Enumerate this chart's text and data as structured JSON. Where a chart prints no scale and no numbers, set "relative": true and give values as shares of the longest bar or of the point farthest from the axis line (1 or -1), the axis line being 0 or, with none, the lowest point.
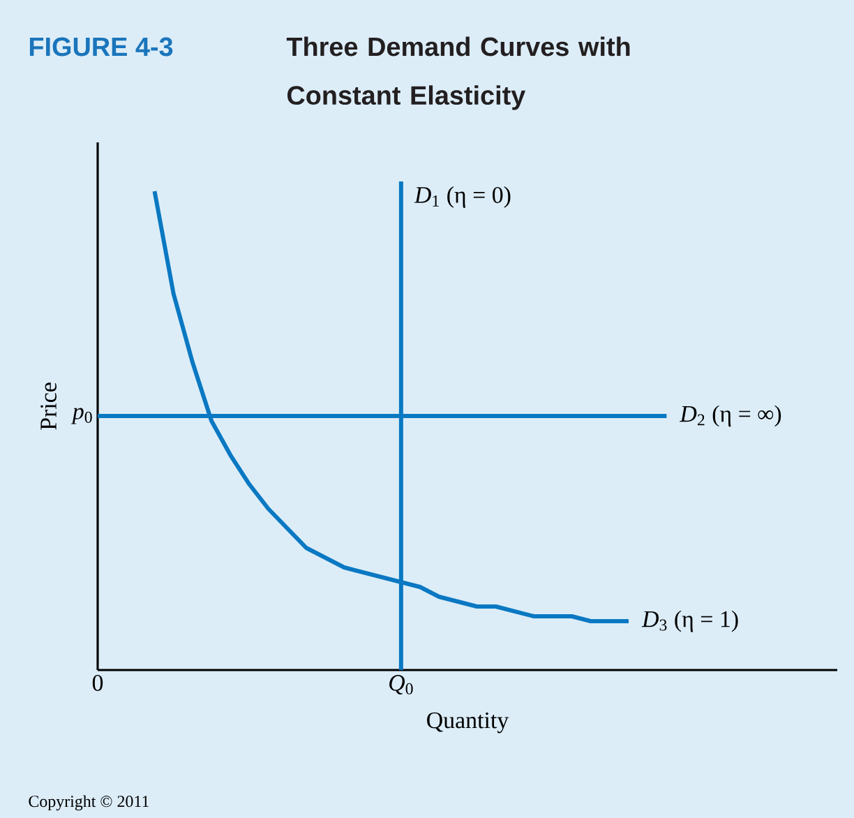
{
  "chart_data": {
    "type": "line",
    "title": "FIGURE 4-3",
    "subtitle": "Three Demand Curves with Constant Elasticity",
    "xlabel": "Quantity",
    "ylabel": "Price",
    "relative": true,
    "categories": [
      "0",
      null,
      null,
      null,
      null,
      null,
      null,
      null,
      null,
      null,
      null,
      null,
      null,
      null,
      null,
      null,
      "*Q*$_{0}$",
      null,
      null,
      null,
      null,
      null,
      null,
      null,
      null,
      null,
      null,
      null,
      null,
      null,
      null,
      null,
      null,
      null,
      null,
      null,
      null,
      null,
      null,
      null
    ],
    "series": [
      {
        "name": "*D*$_{1}$  (η = 0)",
        "type": "bar",
        "color": "#0a78c2",
        "values": [
          null,
          null,
          null,
          null,
          null,
          null,
          null,
          null,
          null,
          null,
          null,
          null,
          null,
          null,
          null,
          null,
          1,
          null,
          null,
          null,
          null,
          null,
          null,
          null,
          null,
          null,
          null,
          null,
          null,
          null,
          null,
          null,
          null,
          null,
          null,
          null,
          null,
          null,
          null,
          null
        ]
      },
      {
        "name": "*D*$_{2}$ (η = ∞)",
        "color": "#0a78c2",
        "values": [
          0.52,
          0.52,
          0.52,
          0.52,
          0.52,
          0.52,
          0.52,
          0.52,
          0.52,
          0.52,
          0.52,
          0.52,
          0.52,
          0.52,
          0.52,
          0.52,
          0.52,
          0.52,
          0.52,
          0.52,
          0.52,
          0.52,
          0.52,
          0.52,
          0.52,
          0.52,
          0.52,
          0.52,
          0.52,
          0.52,
          0.52,
          null,
          null,
          null,
          null,
          null,
          null,
          null,
          null,
          null
        ]
      },
      {
        "name": "*D*$_{3}$  (η = 1)",
        "color": "#0a78c2",
        "values": [
          null,
          null,
          null,
          0.98,
          0.77,
          0.63,
          0.51,
          0.44,
          0.38,
          0.33,
          0.29,
          0.25,
          0.23,
          0.21,
          0.2,
          0.19,
          0.18,
          0.17,
          0.15,
          0.14,
          0.13,
          0.13,
          0.12,
          0.11,
          0.11,
          0.11,
          0.1,
          0.1,
          0.1,
          null,
          null,
          null,
          null,
          null,
          null,
          null,
          null,
          null,
          null,
          null
        ]
      }
    ],
    "annotations": [
      "*p*$_{0}$",
      "Copyright © 2011"
    ]
  }
}
